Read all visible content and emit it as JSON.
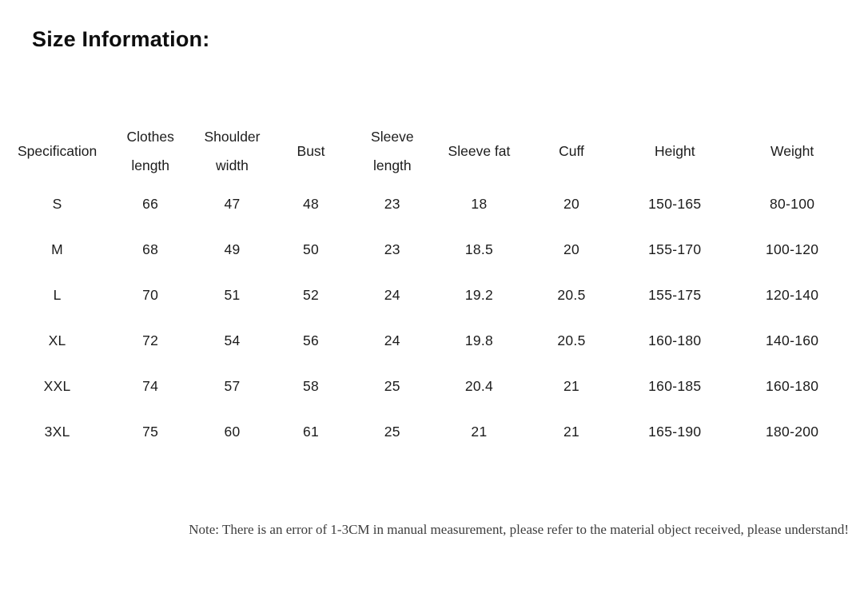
{
  "title": "Size Information:",
  "table": {
    "columns": [
      {
        "label": "Specification",
        "lines": [
          "Specification"
        ]
      },
      {
        "label": "Clothes length",
        "lines": [
          "Clothes",
          "length"
        ]
      },
      {
        "label": "Shoulder width",
        "lines": [
          "Shoulder",
          "width"
        ]
      },
      {
        "label": "Bust",
        "lines": [
          "Bust"
        ]
      },
      {
        "label": "Sleeve length",
        "lines": [
          "Sleeve",
          "length"
        ]
      },
      {
        "label": "Sleeve fat",
        "lines": [
          "Sleeve fat"
        ]
      },
      {
        "label": "Cuff",
        "lines": [
          "Cuff"
        ]
      },
      {
        "label": "Height",
        "lines": [
          "Height"
        ]
      },
      {
        "label": "Weight",
        "lines": [
          "Weight"
        ]
      }
    ],
    "rows": [
      [
        "S",
        "66",
        "47",
        "48",
        "23",
        "18",
        "20",
        "150-165",
        "80-100"
      ],
      [
        "M",
        "68",
        "49",
        "50",
        "23",
        "18.5",
        "20",
        "155-170",
        "100-120"
      ],
      [
        "L",
        "70",
        "51",
        "52",
        "24",
        "19.2",
        "20.5",
        "155-175",
        "120-140"
      ],
      [
        "XL",
        "72",
        "54",
        "56",
        "24",
        "19.8",
        "20.5",
        "160-180",
        "140-160"
      ],
      [
        "XXL",
        "74",
        "57",
        "58",
        "25",
        "20.4",
        "21",
        "160-185",
        "160-180"
      ],
      [
        "3XL",
        "75",
        "60",
        "61",
        "25",
        "21",
        "21",
        "165-190",
        "180-200"
      ]
    ]
  },
  "note": "Note: There is an error of 1-3CM in manual measurement, please refer to the material object received, please understand!",
  "colors": {
    "background": "#ffffff",
    "title_text": "#0e0e0e",
    "table_text": "#1c1c1c",
    "note_text": "#3d3d3d"
  }
}
